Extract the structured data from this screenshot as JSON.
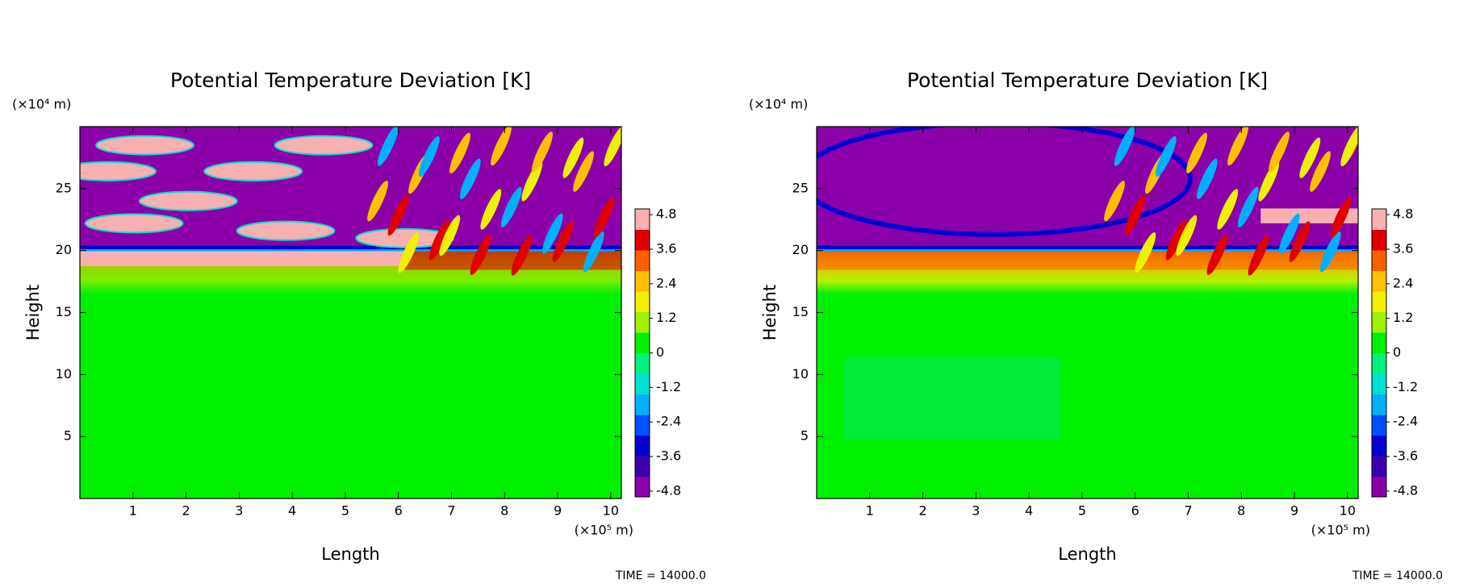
{
  "chart_data": [
    {
      "type": "contour",
      "title": "Potential Temperature Deviation [K]",
      "xlabel": "Length",
      "ylabel": "Height",
      "x_unit": "(×10⁵ m)",
      "y_unit": "(×10⁴ m)",
      "xlim": [
        0,
        10.2
      ],
      "ylim": [
        0,
        30
      ],
      "xticks": [
        1,
        2,
        3,
        4,
        5,
        6,
        7,
        8,
        9,
        10
      ],
      "yticks": [
        5,
        10,
        15,
        20,
        25
      ],
      "clim": [
        -5,
        5
      ],
      "cticks": [
        4.8,
        3.6,
        2.4,
        1.2,
        0,
        -1.2,
        -2.4,
        -3.6,
        -4.8
      ],
      "colors": [
        "#8b00a8",
        "#3a00b0",
        "#0000d0",
        "#0050ff",
        "#00b0ff",
        "#00e0d0",
        "#00f080",
        "#00f000",
        "#a0f000",
        "#f0f000",
        "#ffc000",
        "#ff6000",
        "#e00000",
        "#f8b0b0"
      ],
      "time_label": "TIME = 14000.0"
    },
    {
      "type": "contour",
      "title": "Potential Temperature Deviation [K]",
      "xlabel": "Length",
      "ylabel": "Height",
      "x_unit": "(×10⁵ m)",
      "y_unit": "(×10⁴ m)",
      "xlim": [
        0,
        10.2
      ],
      "ylim": [
        0,
        30
      ],
      "xticks": [
        1,
        2,
        3,
        4,
        5,
        6,
        7,
        8,
        9,
        10
      ],
      "yticks": [
        5,
        10,
        15,
        20,
        25
      ],
      "clim": [
        -5,
        5
      ],
      "cticks": [
        4.8,
        3.6,
        2.4,
        1.2,
        0,
        -1.2,
        -2.4,
        -3.6,
        -4.8
      ],
      "colors": [
        "#8b00a8",
        "#3a00b0",
        "#0000d0",
        "#0050ff",
        "#00b0ff",
        "#00e0d0",
        "#00f080",
        "#00f000",
        "#a0f000",
        "#f0f000",
        "#ffc000",
        "#ff6000",
        "#e00000",
        "#f8b0b0"
      ],
      "time_label": "TIME = 14000.0"
    }
  ]
}
